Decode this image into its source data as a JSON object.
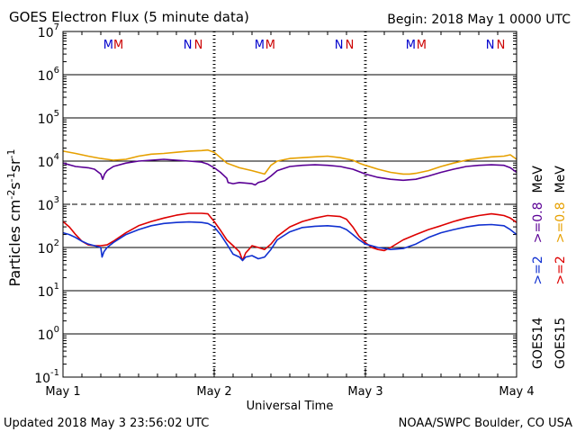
{
  "chart_data": {
    "type": "line",
    "title": "GOES Electron Flux (5 minute data)",
    "begin_label": "Begin: 2018 May 1 0000 UTC",
    "xlabel": "Universal Time",
    "ylabel_parts": [
      "Particles cm",
      "-2",
      "s",
      "-1",
      "sr",
      "-1"
    ],
    "x_ticks": [
      "May 1",
      "May 2",
      "May 3",
      "May 4"
    ],
    "xlim": [
      0,
      72
    ],
    "y_scale": "log",
    "ylim": [
      0.1,
      10000000
    ],
    "y_tick_bases": [
      "10",
      "10",
      "10",
      "10",
      "10",
      "10",
      "10",
      "10",
      "10"
    ],
    "y_tick_exponents": [
      "-1",
      "0",
      "1",
      "2",
      "3",
      "4",
      "5",
      "6",
      "7"
    ],
    "dashed_threshold": 1000,
    "markers": {
      "goes14_color": "#0000cc",
      "goes15_color": "#cc0000",
      "items": [
        {
          "x": 7.2,
          "label": "M",
          "sat": "goes14"
        },
        {
          "x": 8.8,
          "label": "M",
          "sat": "goes15"
        },
        {
          "x": 19.8,
          "label": "N",
          "sat": "goes14"
        },
        {
          "x": 21.5,
          "label": "N",
          "sat": "goes15"
        },
        {
          "x": 31.2,
          "label": "M",
          "sat": "goes14"
        },
        {
          "x": 32.9,
          "label": "M",
          "sat": "goes15"
        },
        {
          "x": 43.8,
          "label": "N",
          "sat": "goes14"
        },
        {
          "x": 45.5,
          "label": "N",
          "sat": "goes15"
        },
        {
          "x": 55.2,
          "label": "M",
          "sat": "goes14"
        },
        {
          "x": 56.9,
          "label": "M",
          "sat": "goes15"
        },
        {
          "x": 67.8,
          "label": "N",
          "sat": "goes14"
        },
        {
          "x": 69.5,
          "label": "N",
          "sat": "goes15"
        }
      ]
    },
    "series": [
      {
        "id": "goes15_08",
        "color": "#e6a000",
        "points": [
          [
            0,
            17000
          ],
          [
            2,
            15000
          ],
          [
            4,
            13000
          ],
          [
            6,
            11500
          ],
          [
            8,
            10500
          ],
          [
            10,
            11000
          ],
          [
            12,
            13000
          ],
          [
            14,
            14500
          ],
          [
            16,
            15000
          ],
          [
            18,
            16000
          ],
          [
            20,
            17000
          ],
          [
            22,
            17500
          ],
          [
            23,
            18000
          ],
          [
            24,
            16000
          ],
          [
            25,
            12000
          ],
          [
            26,
            9000
          ],
          [
            28,
            7000
          ],
          [
            29,
            6500
          ],
          [
            30,
            6000
          ],
          [
            31,
            5500
          ],
          [
            32,
            5000
          ],
          [
            33,
            8000
          ],
          [
            34,
            10000
          ],
          [
            36,
            11500
          ],
          [
            38,
            12000
          ],
          [
            40,
            12500
          ],
          [
            42,
            13000
          ],
          [
            44,
            12000
          ],
          [
            46,
            10500
          ],
          [
            47,
            9000
          ],
          [
            48,
            8000
          ],
          [
            50,
            6500
          ],
          [
            52,
            5500
          ],
          [
            54,
            5000
          ],
          [
            55,
            5000
          ],
          [
            56,
            5200
          ],
          [
            58,
            6000
          ],
          [
            60,
            7500
          ],
          [
            62,
            9000
          ],
          [
            64,
            10500
          ],
          [
            66,
            11500
          ],
          [
            68,
            12500
          ],
          [
            70,
            13000
          ],
          [
            71,
            14000
          ],
          [
            72,
            11000
          ]
        ]
      },
      {
        "id": "goes14_08",
        "color": "#5a0095",
        "points": [
          [
            0,
            9000
          ],
          [
            2,
            7500
          ],
          [
            4,
            7000
          ],
          [
            5,
            6500
          ],
          [
            6,
            5000
          ],
          [
            6.3,
            3800
          ],
          [
            6.6,
            5000
          ],
          [
            7,
            6000
          ],
          [
            8,
            7500
          ],
          [
            10,
            9000
          ],
          [
            12,
            10000
          ],
          [
            14,
            10500
          ],
          [
            16,
            11000
          ],
          [
            18,
            10500
          ],
          [
            20,
            10000
          ],
          [
            22,
            9500
          ],
          [
            23,
            8500
          ],
          [
            24,
            7000
          ],
          [
            25,
            5500
          ],
          [
            26,
            4000
          ],
          [
            26.2,
            3200
          ],
          [
            27,
            3000
          ],
          [
            28,
            3200
          ],
          [
            29,
            3100
          ],
          [
            30,
            3000
          ],
          [
            30.5,
            2800
          ],
          [
            31,
            3200
          ],
          [
            32,
            3500
          ],
          [
            33,
            4500
          ],
          [
            34,
            6000
          ],
          [
            36,
            7500
          ],
          [
            38,
            8000
          ],
          [
            40,
            8200
          ],
          [
            42,
            8000
          ],
          [
            44,
            7500
          ],
          [
            46,
            6500
          ],
          [
            48,
            5000
          ],
          [
            50,
            4200
          ],
          [
            52,
            3800
          ],
          [
            54,
            3600
          ],
          [
            56,
            3800
          ],
          [
            58,
            4500
          ],
          [
            60,
            5500
          ],
          [
            62,
            6500
          ],
          [
            64,
            7500
          ],
          [
            66,
            8000
          ],
          [
            68,
            8200
          ],
          [
            70,
            8000
          ],
          [
            71,
            7000
          ],
          [
            72,
            5500
          ]
        ]
      },
      {
        "id": "goes15_2",
        "color": "#dd0000",
        "points": [
          [
            0,
            400
          ],
          [
            1,
            300
          ],
          [
            2,
            200
          ],
          [
            3,
            140
          ],
          [
            4,
            115
          ],
          [
            5,
            110
          ],
          [
            6,
            110
          ],
          [
            7,
            115
          ],
          [
            8,
            140
          ],
          [
            10,
            220
          ],
          [
            12,
            320
          ],
          [
            14,
            400
          ],
          [
            16,
            480
          ],
          [
            18,
            560
          ],
          [
            20,
            620
          ],
          [
            22,
            620
          ],
          [
            23,
            600
          ],
          [
            24,
            400
          ],
          [
            25,
            250
          ],
          [
            26,
            150
          ],
          [
            27,
            110
          ],
          [
            28,
            80
          ],
          [
            28.5,
            50
          ],
          [
            29,
            75
          ],
          [
            29.5,
            90
          ],
          [
            30,
            110
          ],
          [
            31,
            100
          ],
          [
            32,
            90
          ],
          [
            33,
            120
          ],
          [
            34,
            180
          ],
          [
            36,
            300
          ],
          [
            38,
            400
          ],
          [
            40,
            480
          ],
          [
            42,
            550
          ],
          [
            44,
            520
          ],
          [
            45,
            450
          ],
          [
            46,
            300
          ],
          [
            47,
            180
          ],
          [
            48,
            130
          ],
          [
            49,
            100
          ],
          [
            50,
            90
          ],
          [
            51,
            85
          ],
          [
            52,
            100
          ],
          [
            54,
            150
          ],
          [
            56,
            200
          ],
          [
            58,
            260
          ],
          [
            60,
            320
          ],
          [
            62,
            400
          ],
          [
            64,
            480
          ],
          [
            66,
            550
          ],
          [
            68,
            600
          ],
          [
            69,
            580
          ],
          [
            70,
            550
          ],
          [
            71,
            480
          ],
          [
            72,
            380
          ]
        ]
      },
      {
        "id": "goes14_2",
        "color": "#1030d0",
        "points": [
          [
            0,
            220
          ],
          [
            1,
            200
          ],
          [
            2,
            170
          ],
          [
            3,
            140
          ],
          [
            4,
            120
          ],
          [
            5,
            110
          ],
          [
            6,
            100
          ],
          [
            6.2,
            60
          ],
          [
            6.5,
            80
          ],
          [
            7,
            100
          ],
          [
            8,
            130
          ],
          [
            10,
            200
          ],
          [
            12,
            260
          ],
          [
            14,
            320
          ],
          [
            16,
            360
          ],
          [
            18,
            380
          ],
          [
            20,
            390
          ],
          [
            22,
            380
          ],
          [
            23,
            360
          ],
          [
            24,
            300
          ],
          [
            25,
            200
          ],
          [
            26,
            120
          ],
          [
            27,
            70
          ],
          [
            28,
            60
          ],
          [
            28.5,
            50
          ],
          [
            29,
            60
          ],
          [
            30,
            65
          ],
          [
            31,
            55
          ],
          [
            32,
            60
          ],
          [
            33,
            90
          ],
          [
            34,
            150
          ],
          [
            36,
            230
          ],
          [
            38,
            290
          ],
          [
            40,
            310
          ],
          [
            42,
            320
          ],
          [
            44,
            300
          ],
          [
            45,
            260
          ],
          [
            46,
            200
          ],
          [
            47,
            150
          ],
          [
            48,
            120
          ],
          [
            50,
            100
          ],
          [
            52,
            90
          ],
          [
            54,
            95
          ],
          [
            56,
            120
          ],
          [
            58,
            170
          ],
          [
            60,
            220
          ],
          [
            62,
            260
          ],
          [
            64,
            300
          ],
          [
            66,
            330
          ],
          [
            68,
            340
          ],
          [
            70,
            320
          ],
          [
            71,
            260
          ],
          [
            72,
            200
          ]
        ]
      }
    ],
    "legend": [
      {
        "sat": "GOES14",
        "low_label": ">=2",
        "high_label": ">=0.8",
        "unit": "MeV",
        "low_color": "#1030d0",
        "high_color": "#5a0095"
      },
      {
        "sat": "GOES15",
        "low_label": ">=2",
        "high_label": ">=0.8",
        "unit": "MeV",
        "low_color": "#dd0000",
        "high_color": "#e6a000"
      }
    ]
  },
  "footer": {
    "updated": "Updated 2018 May  3 23:56:02 UTC",
    "credit": "NOAA/SWPC Boulder, CO USA"
  }
}
